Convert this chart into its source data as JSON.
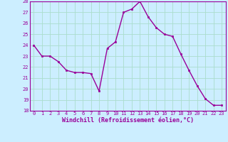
{
  "x": [
    0,
    1,
    2,
    3,
    4,
    5,
    6,
    7,
    8,
    9,
    10,
    11,
    12,
    13,
    14,
    15,
    16,
    17,
    18,
    19,
    20,
    21,
    22,
    23
  ],
  "y": [
    24.0,
    23.0,
    23.0,
    22.5,
    21.7,
    21.5,
    21.5,
    21.4,
    19.8,
    23.7,
    24.3,
    27.0,
    27.3,
    28.0,
    26.6,
    25.6,
    25.0,
    24.8,
    23.2,
    21.7,
    20.3,
    19.1,
    18.5,
    18.5
  ],
  "line_color": "#990099",
  "marker": "s",
  "marker_size": 1.8,
  "bg_color": "#cceeff",
  "grid_color": "#aaddcc",
  "xlabel": "Windchill (Refroidissement éolien,°C)",
  "xlabel_color": "#990099",
  "tick_color": "#990099",
  "ylim": [
    18,
    28
  ],
  "xlim": [
    -0.5,
    23.5
  ],
  "yticks": [
    18,
    19,
    20,
    21,
    22,
    23,
    24,
    25,
    26,
    27,
    28
  ],
  "xticks": [
    0,
    1,
    2,
    3,
    4,
    5,
    6,
    7,
    8,
    9,
    10,
    11,
    12,
    13,
    14,
    15,
    16,
    17,
    18,
    19,
    20,
    21,
    22,
    23
  ],
  "tick_fontsize": 5.0,
  "xlabel_fontsize": 6.0,
  "line_width": 1.0
}
